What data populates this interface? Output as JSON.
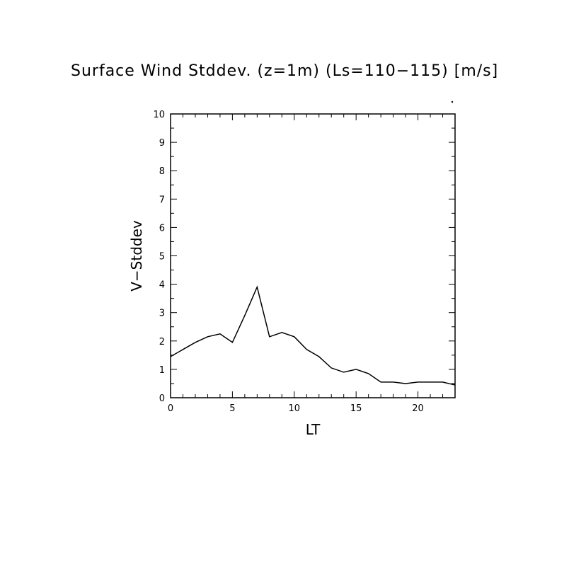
{
  "chart_data": {
    "type": "line",
    "title": "Surface Wind Stddev. (z=1m) (Ls=110−115) [m/s]",
    "xlabel": "LT",
    "ylabel": "V−Stddev",
    "xlim": [
      0,
      23
    ],
    "ylim": [
      0,
      10
    ],
    "x_major_ticks": [
      0,
      5,
      10,
      15,
      20
    ],
    "y_major_ticks": [
      0,
      1,
      2,
      3,
      4,
      5,
      6,
      7,
      8,
      9,
      10
    ],
    "grid": false,
    "line_color": "#000000",
    "series": [
      {
        "x": [
          0,
          1,
          2,
          3,
          4,
          5,
          6,
          7,
          8,
          9,
          10,
          11,
          12,
          13,
          14,
          15,
          16,
          17,
          18,
          19,
          20,
          21,
          22,
          23
        ],
        "values": [
          1.45,
          1.7,
          1.95,
          2.15,
          2.25,
          1.95,
          2.9,
          3.9,
          2.15,
          2.3,
          2.15,
          1.7,
          1.45,
          1.05,
          0.9,
          1.0,
          0.85,
          0.55,
          0.55,
          0.5,
          0.55,
          0.55,
          0.55,
          0.45
        ]
      }
    ]
  }
}
